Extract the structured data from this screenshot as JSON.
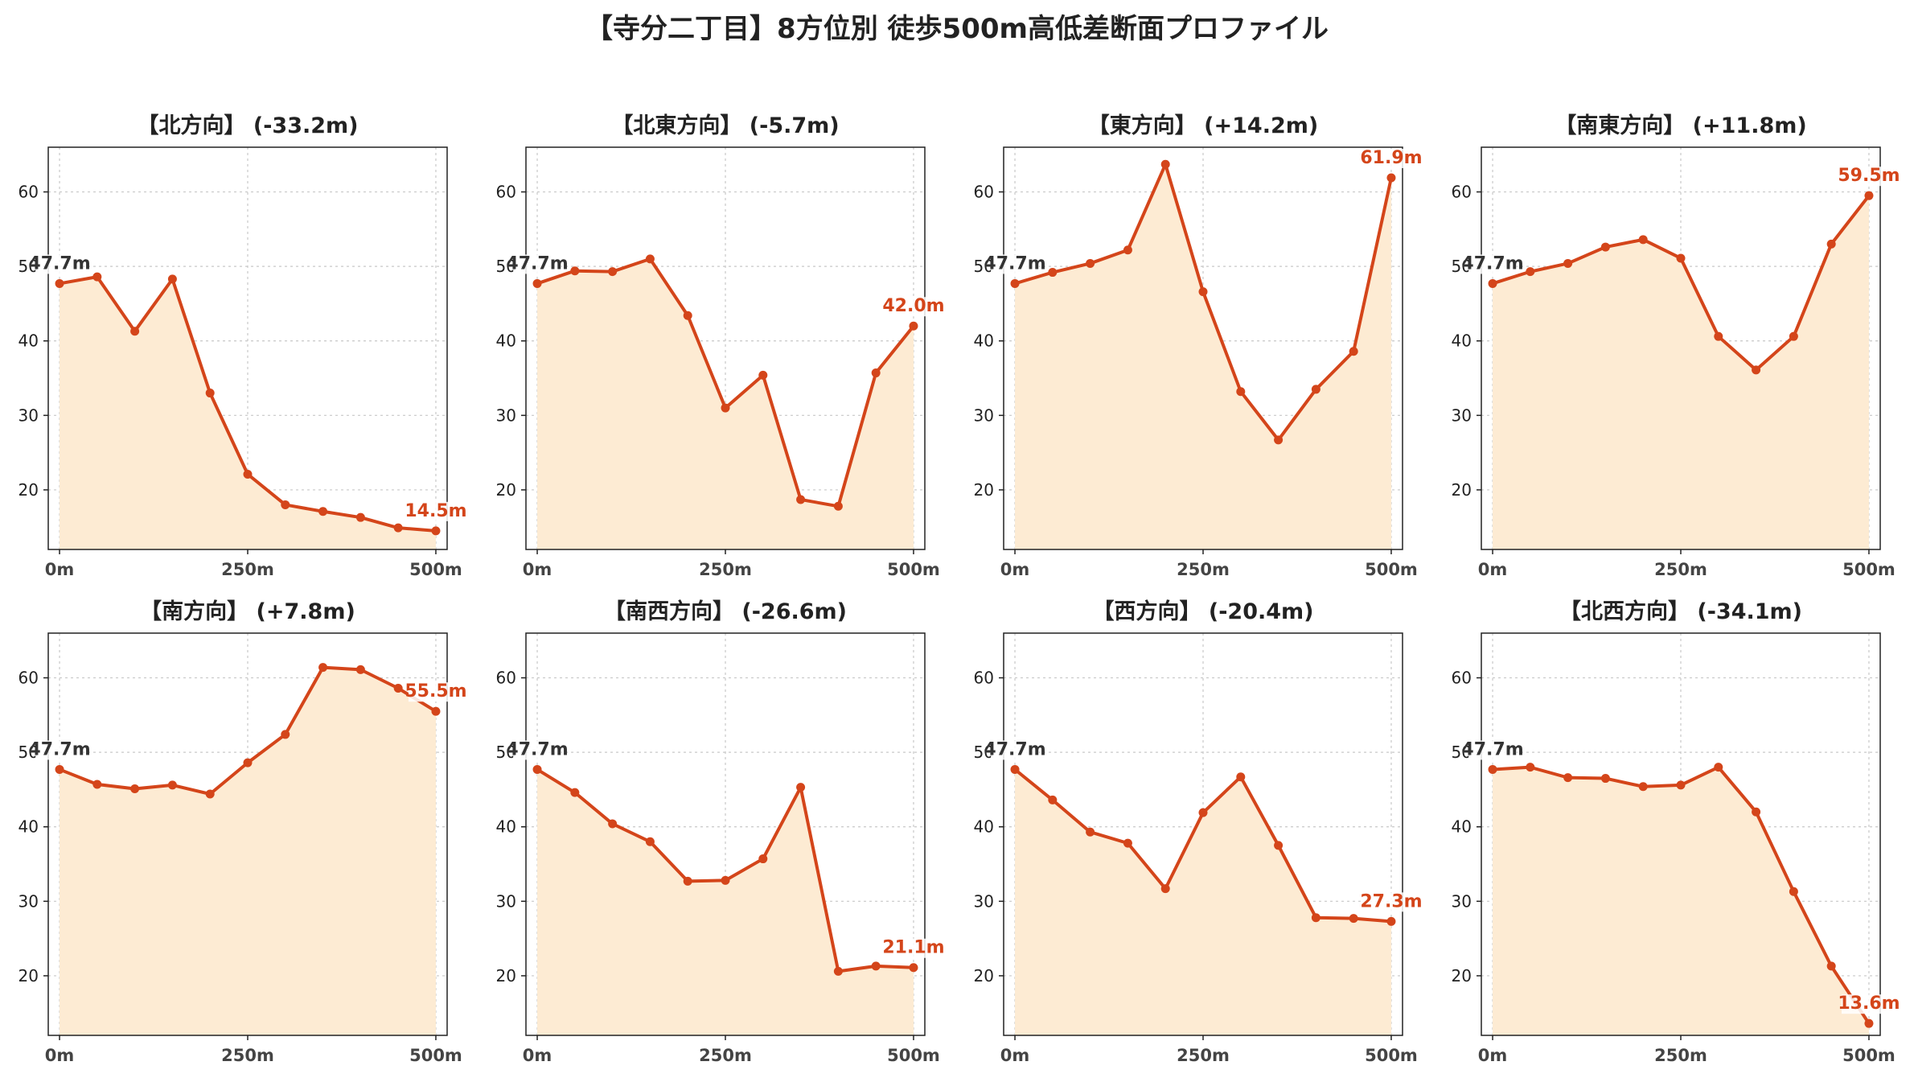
{
  "title": "【寺分二丁目】8方位別 徒歩500m高低差断面プロファイル",
  "colors": {
    "line": "#d4451a",
    "fill": "#fdebd3",
    "start_label": "#333333",
    "end_label": "#d4451a"
  },
  "chart_data": [
    {
      "type": "line",
      "title": "【北方向】 (-33.2m)",
      "x": [
        0,
        50,
        100,
        150,
        200,
        250,
        300,
        350,
        400,
        450,
        500
      ],
      "values": [
        47.7,
        48.6,
        41.3,
        48.3,
        33.0,
        22.1,
        18.0,
        17.1,
        16.3,
        14.9,
        14.5
      ],
      "start_label": "47.7m",
      "end_label": "14.5m",
      "xticks": [
        "0m",
        "250m",
        "500m"
      ],
      "yticks": [
        "20",
        "30",
        "40",
        "50",
        "60"
      ],
      "xlim": [
        -15,
        515
      ],
      "ylim": [
        12,
        66
      ],
      "grid": true
    },
    {
      "type": "line",
      "title": "【北東方向】 (-5.7m)",
      "x": [
        0,
        50,
        100,
        150,
        200,
        250,
        300,
        350,
        400,
        450,
        500
      ],
      "values": [
        47.7,
        49.4,
        49.3,
        51.0,
        43.4,
        31.0,
        35.4,
        18.7,
        17.8,
        35.7,
        42.0
      ],
      "start_label": "47.7m",
      "end_label": "42.0m",
      "xticks": [
        "0m",
        "250m",
        "500m"
      ],
      "yticks": [
        "20",
        "30",
        "40",
        "50",
        "60"
      ],
      "xlim": [
        -15,
        515
      ],
      "ylim": [
        12,
        66
      ],
      "grid": true
    },
    {
      "type": "line",
      "title": "【東方向】 (+14.2m)",
      "x": [
        0,
        50,
        100,
        150,
        200,
        250,
        300,
        350,
        400,
        450,
        500
      ],
      "values": [
        47.7,
        49.2,
        50.4,
        52.2,
        63.7,
        46.6,
        33.2,
        26.7,
        33.5,
        38.6,
        61.9
      ],
      "start_label": "47.7m",
      "end_label": "61.9m",
      "xticks": [
        "0m",
        "250m",
        "500m"
      ],
      "yticks": [
        "20",
        "30",
        "40",
        "50",
        "60"
      ],
      "xlim": [
        -15,
        515
      ],
      "ylim": [
        12,
        66
      ],
      "grid": true
    },
    {
      "type": "line",
      "title": "【南東方向】 (+11.8m)",
      "x": [
        0,
        50,
        100,
        150,
        200,
        250,
        300,
        350,
        400,
        450,
        500
      ],
      "values": [
        47.7,
        49.3,
        50.4,
        52.6,
        53.6,
        51.1,
        40.6,
        36.1,
        40.6,
        53.0,
        59.5
      ],
      "start_label": "47.7m",
      "end_label": "59.5m",
      "xticks": [
        "0m",
        "250m",
        "500m"
      ],
      "yticks": [
        "20",
        "30",
        "40",
        "50",
        "60"
      ],
      "xlim": [
        -15,
        515
      ],
      "ylim": [
        12,
        66
      ],
      "grid": true
    },
    {
      "type": "line",
      "title": "【南方向】 (+7.8m)",
      "x": [
        0,
        50,
        100,
        150,
        200,
        250,
        300,
        350,
        400,
        450,
        500
      ],
      "values": [
        47.7,
        45.7,
        45.1,
        45.6,
        44.4,
        48.6,
        52.4,
        61.4,
        61.1,
        58.6,
        55.5
      ],
      "start_label": "47.7m",
      "end_label": "55.5m",
      "xticks": [
        "0m",
        "250m",
        "500m"
      ],
      "yticks": [
        "20",
        "30",
        "40",
        "50",
        "60"
      ],
      "xlim": [
        -15,
        515
      ],
      "ylim": [
        12,
        66
      ],
      "grid": true
    },
    {
      "type": "line",
      "title": "【南西方向】 (-26.6m)",
      "x": [
        0,
        50,
        100,
        150,
        200,
        250,
        300,
        350,
        400,
        450,
        500
      ],
      "values": [
        47.7,
        44.6,
        40.4,
        38.0,
        32.7,
        32.8,
        35.7,
        45.3,
        20.6,
        21.3,
        21.1
      ],
      "start_label": "47.7m",
      "end_label": "21.1m",
      "xticks": [
        "0m",
        "250m",
        "500m"
      ],
      "yticks": [
        "20",
        "30",
        "40",
        "50",
        "60"
      ],
      "xlim": [
        -15,
        515
      ],
      "ylim": [
        12,
        66
      ],
      "grid": true
    },
    {
      "type": "line",
      "title": "【西方向】 (-20.4m)",
      "x": [
        0,
        50,
        100,
        150,
        200,
        250,
        300,
        350,
        400,
        450,
        500
      ],
      "values": [
        47.7,
        43.6,
        39.3,
        37.8,
        31.7,
        41.9,
        46.7,
        37.5,
        27.8,
        27.7,
        27.3
      ],
      "start_label": "47.7m",
      "end_label": "27.3m",
      "xticks": [
        "0m",
        "250m",
        "500m"
      ],
      "yticks": [
        "20",
        "30",
        "40",
        "50",
        "60"
      ],
      "xlim": [
        -15,
        515
      ],
      "ylim": [
        12,
        66
      ],
      "grid": true
    },
    {
      "type": "line",
      "title": "【北西方向】 (-34.1m)",
      "x": [
        0,
        50,
        100,
        150,
        200,
        250,
        300,
        350,
        400,
        450,
        500
      ],
      "values": [
        47.7,
        48.0,
        46.6,
        46.5,
        45.4,
        45.6,
        48.0,
        42.0,
        31.3,
        21.3,
        13.6
      ],
      "start_label": "47.7m",
      "end_label": "13.6m",
      "xticks": [
        "0m",
        "250m",
        "500m"
      ],
      "yticks": [
        "20",
        "30",
        "40",
        "50",
        "60"
      ],
      "xlim": [
        -15,
        515
      ],
      "ylim": [
        12,
        66
      ],
      "grid": true
    }
  ]
}
